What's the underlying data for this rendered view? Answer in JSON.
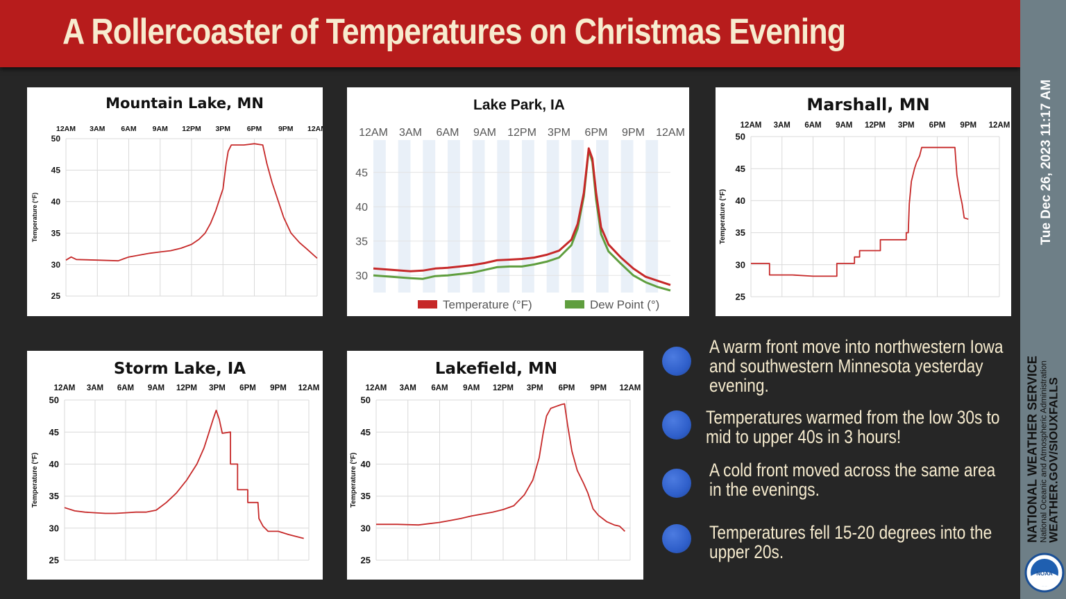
{
  "header": {
    "title": "A Rollercoaster of Temperatures on Christmas Evening"
  },
  "sidebar": {
    "timestamp": "Tue Dec 26, 2023 11:17 AM",
    "agency_line1": "NATIONAL WEATHER SERVICE",
    "agency_line2": "National Oceanic and Atmospheric Administration",
    "agency_line3": "WEATHER.GOV/SIOUXFALLS",
    "logo_text": "NOAA"
  },
  "bullets": [
    "A warm front move into northwestern Iowa and southwestern Minnesota yesterday evening.",
    "Temperatures warmed from the low 30s to mid to upper 40s in 3 hours!",
    "A cold front moved across the same area in the evenings.",
    "Temperatures fell 15-20 degrees into the upper 20s."
  ],
  "colors": {
    "banner": "#b71c1c",
    "temperature": "#c62828",
    "dew_point": "#5f9e3e",
    "bullet": "#3a68d0"
  },
  "chart_data": [
    {
      "type": "line",
      "title": "Mountain Lake, MN",
      "ylabel": "Temperature (°F)",
      "x_ticks": [
        "12AM",
        "3AM",
        "6AM",
        "9AM",
        "12PM",
        "3PM",
        "6PM",
        "9PM",
        "12AM"
      ],
      "y_ticks": [
        25,
        30,
        35,
        40,
        45,
        50
      ],
      "ylim": [
        25,
        50
      ],
      "xlim": [
        0,
        24
      ],
      "grid": true,
      "series": [
        {
          "values": [
            [
              0,
              30.7
            ],
            [
              0.5,
              31.2
            ],
            [
              1,
              30.8
            ],
            [
              3,
              30.7
            ],
            [
              5,
              30.6
            ],
            [
              5.5,
              30.9
            ],
            [
              6,
              31.2
            ],
            [
              7,
              31.5
            ],
            [
              8,
              31.8
            ],
            [
              9,
              32
            ],
            [
              10,
              32.2
            ],
            [
              11,
              32.6
            ],
            [
              12,
              33.2
            ],
            [
              12.7,
              34
            ],
            [
              13.3,
              35
            ],
            [
              13.8,
              36.5
            ],
            [
              14.3,
              38.5
            ],
            [
              14.8,
              41
            ],
            [
              15,
              42
            ],
            [
              15.3,
              46
            ],
            [
              15.5,
              48
            ],
            [
              15.8,
              49
            ],
            [
              17,
              49
            ],
            [
              18,
              49.2
            ],
            [
              18.8,
              49
            ],
            [
              19.2,
              46
            ],
            [
              19.7,
              43
            ],
            [
              20.3,
              40
            ],
            [
              20.8,
              37.5
            ],
            [
              21.5,
              35
            ],
            [
              22.3,
              33.5
            ],
            [
              23,
              32.5
            ],
            [
              24,
              31
            ]
          ]
        }
      ]
    },
    {
      "type": "line",
      "title": "Lake Park, IA",
      "x_ticks": [
        "12AM",
        "3AM",
        "6AM",
        "9AM",
        "12PM",
        "3PM",
        "6PM",
        "9PM",
        "12AM"
      ],
      "y_ticks": [
        30,
        35,
        40,
        45
      ],
      "ylim": [
        27.5,
        48.5
      ],
      "xlim": [
        0,
        24
      ],
      "grid": true,
      "series": [
        {
          "name": "Temperature (°F)",
          "values": [
            [
              0,
              31
            ],
            [
              1.5,
              30.8
            ],
            [
              3,
              30.6
            ],
            [
              4,
              30.7
            ],
            [
              5,
              31
            ],
            [
              6,
              31.1
            ],
            [
              7,
              31.3
            ],
            [
              8,
              31.5
            ],
            [
              9,
              31.8
            ],
            [
              10,
              32.2
            ],
            [
              11,
              32.3
            ],
            [
              12,
              32.4
            ],
            [
              13,
              32.6
            ],
            [
              14,
              33
            ],
            [
              15,
              33.6
            ],
            [
              16,
              35.2
            ],
            [
              16.5,
              37.5
            ],
            [
              17,
              42
            ],
            [
              17.4,
              48.5
            ],
            [
              17.7,
              47
            ],
            [
              18,
              42
            ],
            [
              18.4,
              37
            ],
            [
              19,
              34.5
            ],
            [
              20,
              32.6
            ],
            [
              21,
              31
            ],
            [
              22,
              29.8
            ],
            [
              23,
              29.2
            ],
            [
              24,
              28.6
            ]
          ]
        },
        {
          "name": "Dew Point (°)",
          "values": [
            [
              0,
              30
            ],
            [
              1.5,
              29.8
            ],
            [
              3,
              29.6
            ],
            [
              4,
              29.5
            ],
            [
              5,
              29.9
            ],
            [
              6,
              30
            ],
            [
              7,
              30.2
            ],
            [
              8,
              30.4
            ],
            [
              9,
              30.8
            ],
            [
              10,
              31.2
            ],
            [
              11,
              31.3
            ],
            [
              12,
              31.3
            ],
            [
              13,
              31.6
            ],
            [
              14,
              32
            ],
            [
              15,
              32.6
            ],
            [
              16,
              34.4
            ],
            [
              16.5,
              36.8
            ],
            [
              17,
              41.5
            ],
            [
              17.4,
              48.3
            ],
            [
              17.7,
              46.5
            ],
            [
              18,
              41
            ],
            [
              18.4,
              36
            ],
            [
              19,
              33.5
            ],
            [
              20,
              31.7
            ],
            [
              21,
              30
            ],
            [
              22,
              29
            ],
            [
              23,
              28.3
            ],
            [
              24,
              27.8
            ]
          ]
        }
      ],
      "legend": "bottom"
    },
    {
      "type": "line",
      "title": "Marshall, MN",
      "ylabel": "Temperature (°F)",
      "x_ticks": [
        "12AM",
        "3AM",
        "6AM",
        "9AM",
        "12PM",
        "3PM",
        "6PM",
        "9PM",
        "12AM"
      ],
      "y_ticks": [
        25,
        30,
        35,
        40,
        45,
        50
      ],
      "ylim": [
        25,
        50
      ],
      "xlim": [
        0,
        24
      ],
      "grid": true,
      "series": [
        {
          "values": [
            [
              0,
              30.2
            ],
            [
              1.8,
              30.2
            ],
            [
              1.8,
              28.4
            ],
            [
              4,
              28.4
            ],
            [
              6,
              28.2
            ],
            [
              8,
              28.2
            ],
            [
              8.3,
              28.2
            ],
            [
              8.3,
              30.2
            ],
            [
              10,
              30.2
            ],
            [
              10,
              31.2
            ],
            [
              10.5,
              31.2
            ],
            [
              10.5,
              32.2
            ],
            [
              12.5,
              32.2
            ],
            [
              12.5,
              33.9
            ],
            [
              15,
              33.9
            ],
            [
              15,
              35
            ],
            [
              15.2,
              35
            ],
            [
              15.3,
              39.5
            ],
            [
              15.5,
              43
            ],
            [
              15.8,
              45
            ],
            [
              16,
              46
            ],
            [
              16.3,
              47
            ],
            [
              16.5,
              48.3
            ],
            [
              19.7,
              48.3
            ],
            [
              19.9,
              44
            ],
            [
              20.2,
              41
            ],
            [
              20.4,
              39.5
            ],
            [
              20.6,
              37.3
            ],
            [
              21,
              37.1
            ]
          ]
        }
      ]
    },
    {
      "type": "line",
      "title": "Storm Lake, IA",
      "ylabel": "Temperature (°F)",
      "x_ticks": [
        "12AM",
        "3AM",
        "6AM",
        "9AM",
        "12PM",
        "3PM",
        "6PM",
        "9PM",
        "12AM"
      ],
      "y_ticks": [
        25,
        30,
        35,
        40,
        45,
        50
      ],
      "ylim": [
        25,
        50
      ],
      "xlim": [
        0,
        24
      ],
      "grid": true,
      "series": [
        {
          "values": [
            [
              0,
              33.2
            ],
            [
              1,
              32.7
            ],
            [
              2,
              32.5
            ],
            [
              3,
              32.4
            ],
            [
              4,
              32.3
            ],
            [
              5,
              32.3
            ],
            [
              6,
              32.4
            ],
            [
              7,
              32.5
            ],
            [
              8,
              32.5
            ],
            [
              9,
              32.8
            ],
            [
              10,
              34
            ],
            [
              11,
              35.5
            ],
            [
              12,
              37.5
            ],
            [
              13,
              40
            ],
            [
              13.7,
              42.5
            ],
            [
              14.2,
              45
            ],
            [
              14.6,
              47
            ],
            [
              14.9,
              48.4
            ],
            [
              15.2,
              47
            ],
            [
              15.5,
              44.8
            ],
            [
              16.3,
              45
            ],
            [
              16.3,
              40
            ],
            [
              17,
              40
            ],
            [
              17,
              36
            ],
            [
              18,
              36
            ],
            [
              18,
              34
            ],
            [
              19,
              34
            ],
            [
              19.1,
              31.5
            ],
            [
              19.5,
              30.3
            ],
            [
              20,
              29.5
            ],
            [
              21,
              29.5
            ],
            [
              22,
              29
            ],
            [
              23,
              28.6
            ],
            [
              23.5,
              28.4
            ]
          ]
        }
      ]
    },
    {
      "type": "line",
      "title": "Lakefield, MN",
      "ylabel": "Temperature (°F)",
      "x_ticks": [
        "12AM",
        "3AM",
        "6AM",
        "9AM",
        "12PM",
        "3PM",
        "6PM",
        "9PM",
        "12AM"
      ],
      "y_ticks": [
        25,
        30,
        35,
        40,
        45,
        50
      ],
      "ylim": [
        25,
        50
      ],
      "xlim": [
        0,
        24
      ],
      "grid": true,
      "series": [
        {
          "values": [
            [
              0,
              30.6
            ],
            [
              2,
              30.6
            ],
            [
              4,
              30.5
            ],
            [
              5,
              30.7
            ],
            [
              6,
              30.9
            ],
            [
              7,
              31.2
            ],
            [
              8,
              31.5
            ],
            [
              9,
              31.9
            ],
            [
              10,
              32.2
            ],
            [
              11,
              32.5
            ],
            [
              12,
              32.9
            ],
            [
              13,
              33.5
            ],
            [
              14,
              35.2
            ],
            [
              14.8,
              37.5
            ],
            [
              15.4,
              41
            ],
            [
              15.8,
              45
            ],
            [
              16.1,
              47.5
            ],
            [
              16.5,
              48.7
            ],
            [
              17,
              49
            ],
            [
              17.5,
              49.3
            ],
            [
              17.8,
              49.4
            ],
            [
              18.1,
              46
            ],
            [
              18.5,
              42
            ],
            [
              19,
              39
            ],
            [
              19.6,
              37
            ],
            [
              20,
              35.5
            ],
            [
              20.5,
              33
            ],
            [
              21,
              32
            ],
            [
              21.8,
              31
            ],
            [
              22.5,
              30.5
            ],
            [
              23,
              30.3
            ],
            [
              23.5,
              29.5
            ]
          ]
        }
      ]
    }
  ]
}
